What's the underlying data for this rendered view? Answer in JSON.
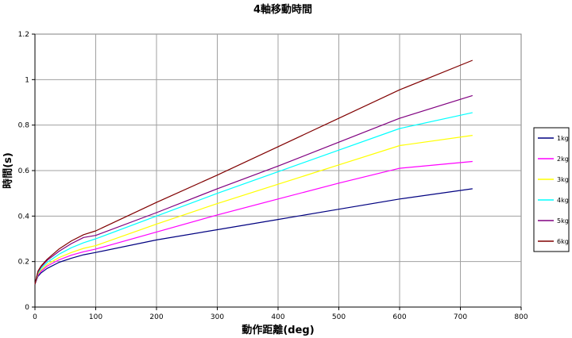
{
  "chart_data": {
    "type": "line",
    "title": "4軸移動時間",
    "xlabel": "動作距離(deg)",
    "ylabel": "時間(s)",
    "xlim": [
      0,
      800
    ],
    "ylim": [
      0,
      1.2
    ],
    "xticks": [
      0,
      100,
      200,
      300,
      400,
      500,
      600,
      700,
      800
    ],
    "yticks": [
      0,
      0.2,
      0.4,
      0.6,
      0.8,
      1,
      1.2
    ],
    "xtick_labels": [
      "0",
      "100",
      "200",
      "300",
      "400",
      "500",
      "600",
      "700",
      "800"
    ],
    "ytick_labels": [
      "0",
      "0.2",
      "0.4",
      "0.6",
      "0.8",
      "1",
      "1.2"
    ],
    "grid": true,
    "legend_position": "right",
    "x": [
      0,
      5,
      10,
      20,
      40,
      60,
      80,
      100,
      200,
      300,
      400,
      500,
      600,
      720
    ],
    "series": [
      {
        "name": "1kg",
        "color": "#000080",
        "values": [
          0.1,
          0.135,
          0.15,
          0.17,
          0.197,
          0.215,
          0.23,
          0.24,
          0.295,
          0.34,
          0.385,
          0.43,
          0.475,
          0.52
        ]
      },
      {
        "name": "2kg",
        "color": "#ff00ff",
        "values": [
          0.1,
          0.14,
          0.157,
          0.18,
          0.208,
          0.228,
          0.243,
          0.255,
          0.33,
          0.405,
          0.475,
          0.545,
          0.61,
          0.64
        ]
      },
      {
        "name": "3kg",
        "color": "#ffff00",
        "values": [
          0.1,
          0.145,
          0.163,
          0.187,
          0.218,
          0.24,
          0.258,
          0.27,
          0.365,
          0.455,
          0.54,
          0.625,
          0.71,
          0.755
        ]
      },
      {
        "name": "4kg",
        "color": "#00ffff",
        "values": [
          0.1,
          0.15,
          0.17,
          0.196,
          0.233,
          0.261,
          0.283,
          0.3,
          0.4,
          0.5,
          0.595,
          0.69,
          0.785,
          0.855
        ]
      },
      {
        "name": "5kg",
        "color": "#800080",
        "values": [
          0.1,
          0.155,
          0.176,
          0.205,
          0.246,
          0.279,
          0.306,
          0.315,
          0.415,
          0.52,
          0.62,
          0.725,
          0.83,
          0.93
        ]
      },
      {
        "name": "6kg",
        "color": "#800000",
        "values": [
          0.1,
          0.158,
          0.18,
          0.21,
          0.256,
          0.291,
          0.318,
          0.335,
          0.46,
          0.58,
          0.705,
          0.83,
          0.955,
          1.085
        ]
      }
    ]
  }
}
